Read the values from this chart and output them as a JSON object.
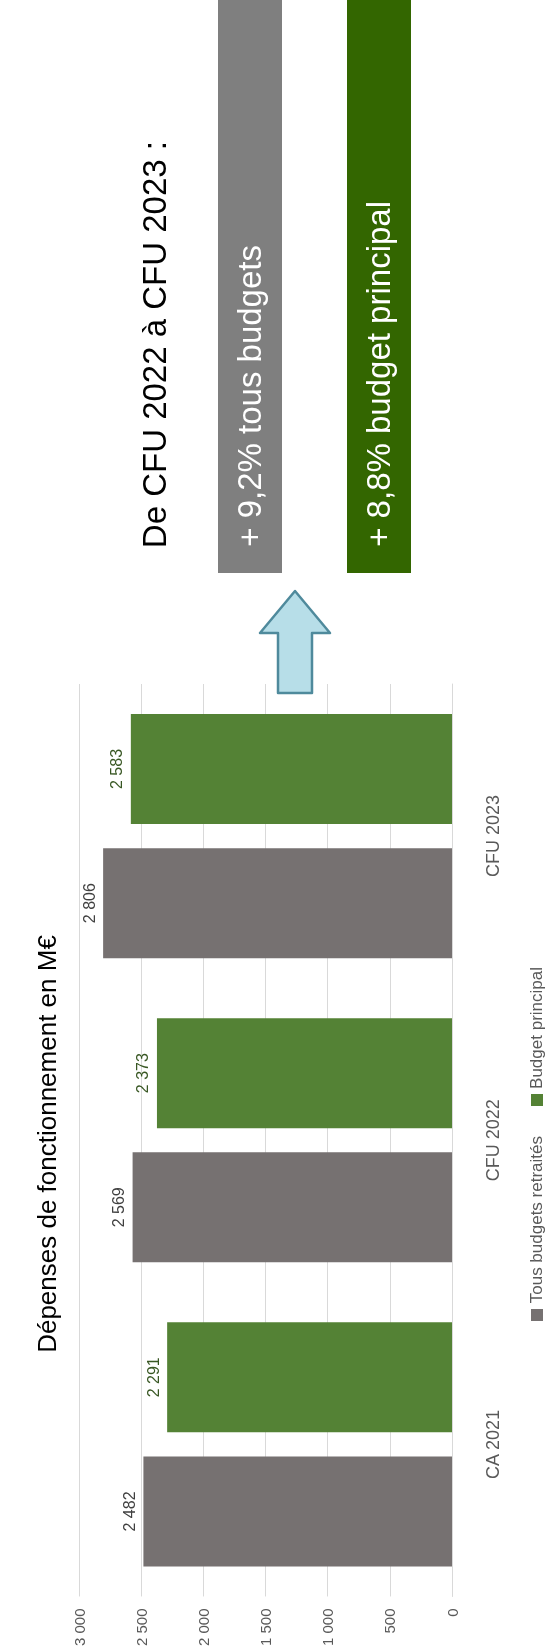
{
  "chart_data": {
    "type": "bar",
    "orientation": "horizontal",
    "title": "Dépenses de fonctionnement en M€",
    "categories": [
      "CFU 2023",
      "CFU 2022",
      "CA 2021"
    ],
    "series": [
      {
        "name": "Tous budgets retraités",
        "color": "#767171",
        "values": [
          2806,
          2569,
          2482
        ],
        "value_labels": [
          "2 806",
          "2 569",
          "2 482"
        ]
      },
      {
        "name": "Budget principal",
        "color": "#548235",
        "values": [
          2583,
          2373,
          2291
        ],
        "value_labels": [
          "2 583",
          "2 373",
          "2 291"
        ]
      }
    ],
    "xlim": [
      3000,
      0
    ],
    "xticks": [
      0,
      500,
      {
        "value": 1000,
        "label": "1 000"
      },
      {
        "value": 1500,
        "label": "1 500"
      },
      {
        "value": 2000,
        "label": "2 000"
      },
      {
        "value": 2500,
        "label": "2 500"
      },
      {
        "value": 3000,
        "label": "3 000"
      }
    ],
    "grid": "x",
    "legend": "right",
    "annotations": [
      "De CFU 2022 à CFU 2023 :",
      "+ 9,2% tous budgets",
      "+ 8,8% budget principal"
    ]
  }
}
